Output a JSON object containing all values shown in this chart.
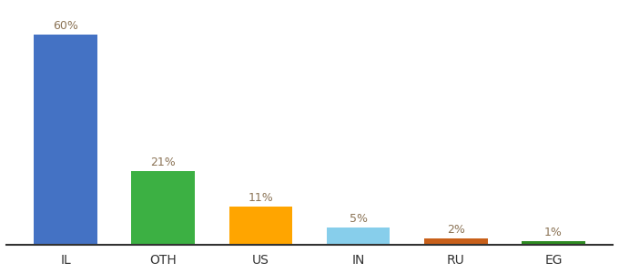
{
  "categories": [
    "IL",
    "OTH",
    "US",
    "IN",
    "RU",
    "EG"
  ],
  "values": [
    60,
    21,
    11,
    5,
    2,
    1
  ],
  "labels": [
    "60%",
    "21%",
    "11%",
    "5%",
    "2%",
    "1%"
  ],
  "bar_colors": [
    "#4472C4",
    "#3CB043",
    "#FFA500",
    "#87CEEB",
    "#C8601A",
    "#2E8B22"
  ],
  "label_color": "#8B7355",
  "tick_color": "#333333",
  "ylim": [
    0,
    68
  ],
  "bar_width": 0.65,
  "background_color": "#ffffff"
}
